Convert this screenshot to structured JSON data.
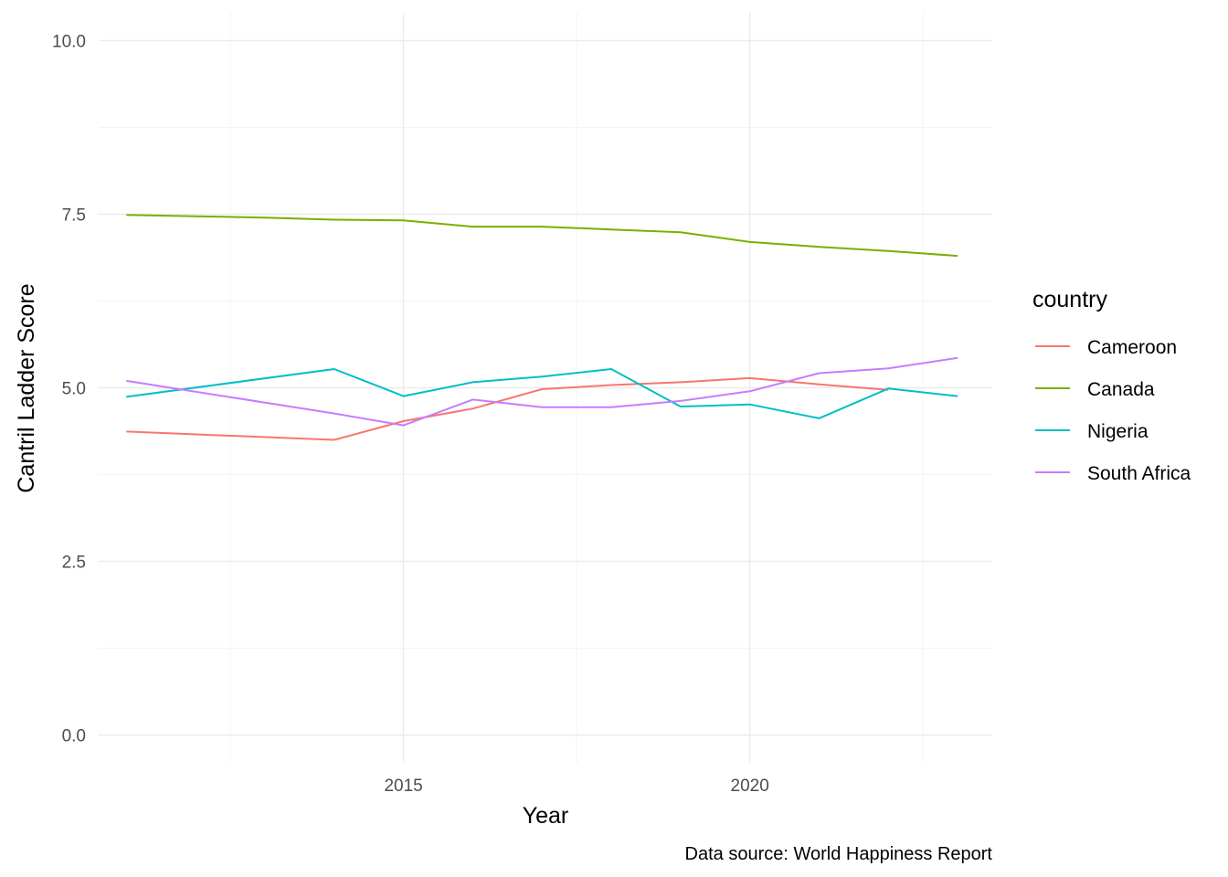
{
  "chart_data": {
    "type": "line",
    "xlabel": "Year",
    "ylabel": "Cantril Ladder Score",
    "caption": "Data source: World Happiness Report",
    "legend_title": "country",
    "legend_position": "right",
    "grid": true,
    "xlim": [
      2010.6,
      2023.5
    ],
    "ylim": [
      -0.4,
      10.4
    ],
    "x_ticks": [
      2015,
      2020
    ],
    "x_tick_labels": [
      "2015",
      "2020"
    ],
    "y_ticks": [
      0,
      2.5,
      5,
      7.5,
      10
    ],
    "y_tick_labels": [
      "0.0",
      "2.5",
      "5.0",
      "7.5",
      "10.0"
    ],
    "series": [
      {
        "name": "Cameroon",
        "color": "#F8766D",
        "x": [
          2011,
          2014,
          2015,
          2016,
          2017,
          2018,
          2019,
          2020,
          2021,
          2022
        ],
        "y": [
          4.37,
          4.25,
          4.52,
          4.7,
          4.98,
          5.04,
          5.08,
          5.14,
          5.05,
          4.97
        ]
      },
      {
        "name": "Canada",
        "color": "#7CAE00",
        "x": [
          2011,
          2012,
          2013,
          2014,
          2015,
          2016,
          2017,
          2018,
          2019,
          2020,
          2021,
          2022,
          2023
        ],
        "y": [
          7.49,
          7.47,
          7.45,
          7.42,
          7.41,
          7.32,
          7.32,
          7.28,
          7.24,
          7.1,
          7.03,
          6.97,
          6.9
        ]
      },
      {
        "name": "Nigeria",
        "color": "#00BFC4",
        "x": [
          2011,
          2014,
          2015,
          2016,
          2017,
          2018,
          2019,
          2020,
          2021,
          2022,
          2023
        ],
        "y": [
          4.87,
          5.27,
          4.88,
          5.08,
          5.16,
          5.27,
          4.73,
          4.76,
          4.56,
          4.99,
          4.88
        ]
      },
      {
        "name": "South Africa",
        "color": "#C77CFF",
        "x": [
          2011,
          2014,
          2015,
          2016,
          2017,
          2018,
          2019,
          2020,
          2021,
          2022,
          2023
        ],
        "y": [
          5.1,
          4.63,
          4.46,
          4.83,
          4.72,
          4.72,
          4.81,
          4.95,
          5.21,
          5.28,
          5.43
        ]
      }
    ]
  }
}
